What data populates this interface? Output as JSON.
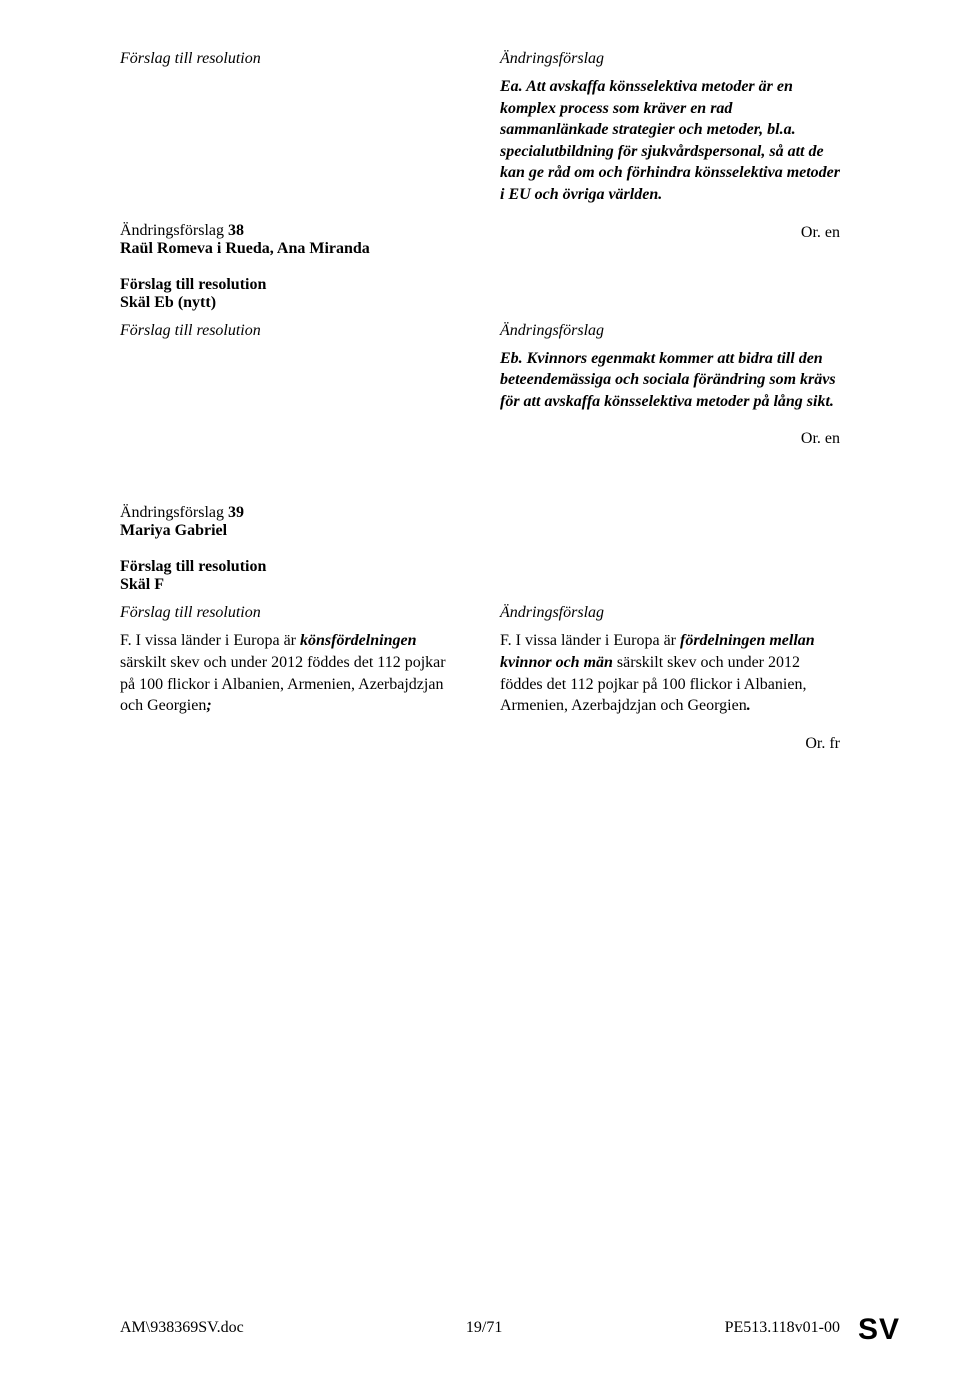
{
  "labels": {
    "forslag_header": "Förslag till resolution",
    "andring_header": "Ändringsförslag",
    "res_label": "Förslag till resolution"
  },
  "block37": {
    "right_text": "Ea. Att avskaffa könsselektiva metoder är en komplex process som kräver en rad sammanlänkade strategier och metoder, bl.a. specialutbildning för sjukvårdspersonal, så att de kan ge råd om och förhindra könsselektiva metoder i EU och övriga världen.",
    "lang": "Or. en"
  },
  "block38": {
    "title": "Ändringsförslag 38",
    "authors": "Raül Romeva i Rueda, Ana Miranda",
    "skal": "Skäl Eb (nytt)",
    "right_text": "Eb. Kvinnors egenmakt kommer att bidra till den beteendemässiga och sociala förändring som krävs för att avskaffa könsselektiva metoder på lång sikt.",
    "lang": "Or. en"
  },
  "block39": {
    "title": "Ändringsförslag 39",
    "authors": "Mariya Gabriel",
    "skal": "Skäl F",
    "left_prefix": "F. I vissa länder i Europa är ",
    "left_em": "könsfördelningen",
    "left_suffix1": " särskilt skev och under 2012 föddes det 112 pojkar på 100 flickor i Albanien, Armenien, Azerbajdzjan och Georgien",
    "left_semicolon": ";",
    "right_prefix": "F. I vissa länder i Europa är ",
    "right_em1": "fördelningen mellan kvinnor och män",
    "right_suffix1": " särskilt skev och under 2012 föddes det 112 pojkar på 100 flickor i Albanien, Armenien, Azerbajdzjan och Georgien",
    "right_dot": ".",
    "lang": "Or. fr"
  },
  "footer": {
    "left": "AM\\938369SV.doc",
    "center": "19/71",
    "right": "PE513.118v01-00",
    "sv": "SV"
  }
}
